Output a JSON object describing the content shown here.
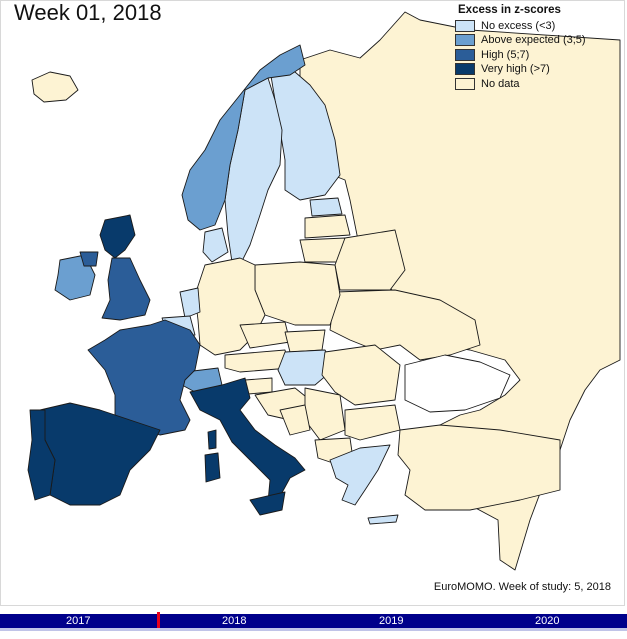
{
  "title": "Week 01, 2018",
  "legend": {
    "title": "Excess in z-scores",
    "items": [
      {
        "label": "No excess (<3)",
        "color": "#cce3f7"
      },
      {
        "label": "Above expected (3;5)",
        "color": "#6b9fd0"
      },
      {
        "label": "High (5;7)",
        "color": "#2b5d98"
      },
      {
        "label": "Very high (>7)",
        "color": "#083a6b"
      },
      {
        "label": "No data",
        "color": "#fdf3d3"
      }
    ]
  },
  "caption": "EuroMOMO. Week of study: 5, 2018",
  "timeline": {
    "years": [
      "2017",
      "2018",
      "2019",
      "2020"
    ],
    "color": "#00008b",
    "marker_color": "#e8001c"
  }
}
